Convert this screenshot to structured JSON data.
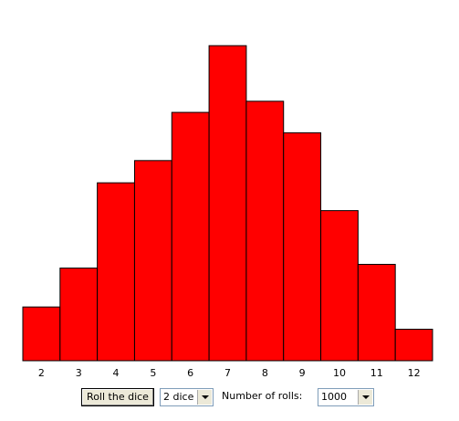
{
  "chart_data": {
    "type": "bar",
    "categories": [
      "2",
      "3",
      "4",
      "5",
      "6",
      "7",
      "8",
      "9",
      "10",
      "11",
      "12"
    ],
    "values": [
      29,
      50,
      96,
      108,
      134,
      170,
      140,
      123,
      81,
      52,
      17
    ],
    "color": "#ff0000"
  },
  "controls": {
    "button": "Roll the dice",
    "dice_select": "2 dice",
    "rolls_label": "Number of rolls:",
    "rolls_select": "1000"
  }
}
